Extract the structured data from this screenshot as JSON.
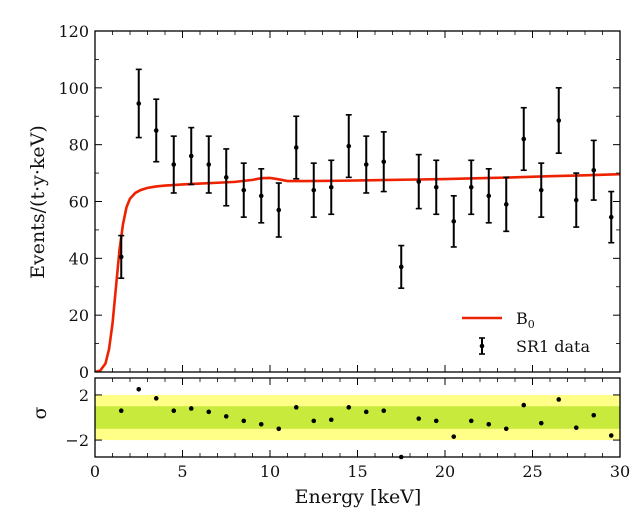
{
  "chart_data": [
    {
      "type": "line",
      "xlabel": "Energy [keV]",
      "ylabel": "Events/(t·y·keV)",
      "xlim": [
        0,
        30
      ],
      "ylim": [
        0,
        120
      ],
      "x_ticks": [
        0,
        5,
        10,
        15,
        20,
        25,
        30
      ],
      "y_ticks": [
        0,
        20,
        40,
        60,
        80,
        100,
        120
      ],
      "legend_position": "lower-right",
      "colors": {
        "model": "#ee2200",
        "data": "#000000"
      },
      "series": [
        {
          "name": "B",
          "name_subscript": "0",
          "type": "line",
          "x": [
            0,
            0.3,
            0.6,
            0.8,
            1.0,
            1.2,
            1.4,
            1.6,
            1.8,
            2.0,
            2.3,
            2.6,
            3.0,
            3.5,
            4.0,
            4.5,
            5,
            6,
            7,
            8,
            9,
            9.5,
            10,
            10.5,
            11,
            12,
            14,
            16,
            18,
            20,
            22,
            24,
            26,
            28,
            30
          ],
          "y": [
            0,
            0.5,
            3,
            8,
            17,
            30,
            43,
            52,
            58,
            61,
            63,
            64,
            64.8,
            65.3,
            65.6,
            65.8,
            66,
            66.3,
            66.6,
            66.9,
            67.6,
            68.2,
            68.3,
            67.8,
            67.2,
            67.2,
            67.3,
            67.5,
            67.7,
            67.9,
            68.2,
            68.5,
            68.9,
            69.2,
            69.6
          ]
        },
        {
          "name": "SR1 data",
          "type": "errorbar",
          "x": [
            1.5,
            2.5,
            3.5,
            4.5,
            5.5,
            6.5,
            7.5,
            8.5,
            9.5,
            10.5,
            11.5,
            12.5,
            13.5,
            14.5,
            15.5,
            16.5,
            17.5,
            18.5,
            19.5,
            20.5,
            21.5,
            22.5,
            23.5,
            24.5,
            25.5,
            26.5,
            27.5,
            28.5,
            29.5
          ],
          "y": [
            40.5,
            94.5,
            85,
            73,
            76,
            73,
            68.5,
            64,
            62,
            57,
            79,
            64,
            65,
            79.5,
            73,
            74,
            37,
            67,
            65,
            53,
            65,
            62,
            59,
            82,
            64,
            88.5,
            60.5,
            71,
            54.5
          ],
          "err": [
            7.5,
            12,
            11,
            10,
            10,
            10,
            10,
            9.5,
            9.5,
            9.5,
            11,
            9.5,
            9.5,
            11,
            10,
            10.5,
            7.5,
            9.5,
            9.5,
            9,
            9.5,
            9.5,
            9.5,
            11,
            9.5,
            11.5,
            9.5,
            10.5,
            9
          ]
        }
      ]
    },
    {
      "type": "scatter",
      "xlabel": "Energy [keV]",
      "ylabel": "σ",
      "xlim": [
        0,
        30
      ],
      "ylim": [
        -3.5,
        3.5
      ],
      "x_ticks": [
        0,
        5,
        10,
        15,
        20,
        25,
        30
      ],
      "y_ticks": [
        -2,
        2
      ],
      "bands": [
        {
          "range": [
            -2,
            2
          ],
          "color": "#ffff88"
        },
        {
          "range": [
            -1,
            1
          ],
          "color": "#c8ea3c"
        }
      ],
      "series": [
        {
          "type": "scatter",
          "x": [
            1.5,
            2.5,
            3.5,
            4.5,
            5.5,
            6.5,
            7.5,
            8.5,
            9.5,
            10.5,
            11.5,
            12.5,
            13.5,
            14.5,
            15.5,
            16.5,
            17.5,
            18.5,
            19.5,
            20.5,
            21.5,
            22.5,
            23.5,
            24.5,
            25.5,
            26.5,
            27.5,
            28.5,
            29.5
          ],
          "y": [
            0.6,
            2.5,
            1.7,
            0.6,
            0.8,
            0.5,
            0.1,
            -0.3,
            -0.6,
            -1.0,
            0.9,
            -0.3,
            -0.2,
            0.9,
            0.5,
            0.6,
            -3.6,
            -0.1,
            -0.3,
            -1.7,
            -0.3,
            -0.6,
            -1.0,
            1.1,
            -0.5,
            1.6,
            -0.9,
            0.2,
            -1.6
          ]
        }
      ]
    }
  ]
}
